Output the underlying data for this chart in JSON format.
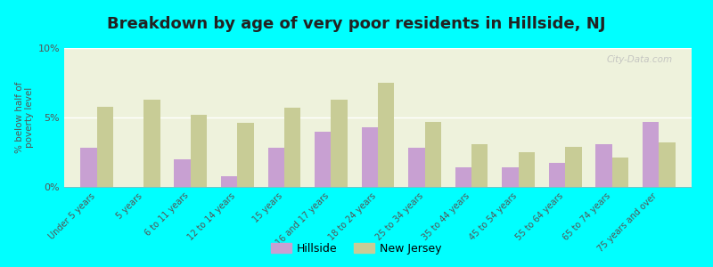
{
  "title": "Breakdown by age of very poor residents in Hillside, NJ",
  "ylabel": "% below half of\npoverty level",
  "categories": [
    "Under 5 years",
    "5 years",
    "6 to 11 years",
    "12 to 14 years",
    "15 years",
    "16 and 17 years",
    "18 to 24 years",
    "25 to 34 years",
    "35 to 44 years",
    "45 to 54 years",
    "55 to 64 years",
    "65 to 74 years",
    "75 years and over"
  ],
  "hillside_values": [
    2.8,
    0.0,
    2.0,
    0.8,
    2.8,
    4.0,
    4.3,
    2.8,
    1.4,
    1.4,
    1.7,
    3.1,
    4.7
  ],
  "nj_values": [
    5.8,
    6.3,
    5.2,
    4.6,
    5.7,
    6.3,
    7.5,
    4.7,
    3.1,
    2.5,
    2.9,
    2.1,
    3.2
  ],
  "hillside_color": "#c8a0d2",
  "nj_color": "#c8cc96",
  "background_color": "#00ffff",
  "plot_bg_color": "#eef2dc",
  "ylim": [
    0,
    10
  ],
  "yticks": [
    0,
    5,
    10
  ],
  "ytick_labels": [
    "0%",
    "5%",
    "10%"
  ],
  "legend_hillside": "Hillside",
  "legend_nj": "New Jersey",
  "title_fontsize": 13,
  "watermark": "City-Data.com"
}
